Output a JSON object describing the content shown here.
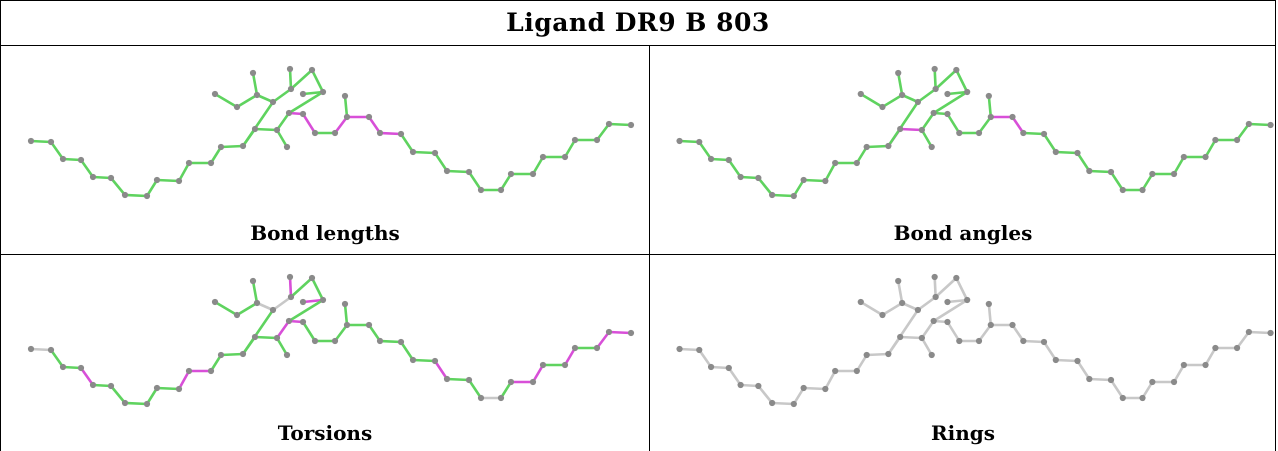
{
  "title": "Ligand DR9 B 803",
  "colors": {
    "ok": "#5fd35f",
    "outlier": "#d84fd8",
    "none": "#c8c8c8",
    "atom": "#8a8a8a",
    "border": "#000000"
  },
  "panels": [
    {
      "id": "bond-lengths",
      "label": "Bond lengths",
      "outliers": [
        [
          16,
          17
        ],
        [
          17,
          18
        ],
        [
          19,
          20
        ],
        [
          20,
          21
        ],
        [
          21,
          22
        ],
        [
          22,
          23
        ]
      ],
      "default": "ok"
    },
    {
      "id": "bond-angles",
      "label": "Bond angles",
      "outliers": [
        [
          13,
          14
        ],
        [
          14,
          15
        ],
        [
          20,
          21
        ],
        [
          21,
          22
        ]
      ],
      "default": "ok"
    },
    {
      "id": "torsions",
      "label": "Torsions",
      "outliers": [
        [
          3,
          4
        ],
        [
          9,
          10
        ],
        [
          10,
          11
        ],
        [
          15,
          16
        ],
        [
          16,
          17
        ],
        [
          25,
          26
        ],
        [
          30,
          31
        ],
        [
          31,
          32
        ],
        [
          33,
          34
        ],
        [
          35,
          36
        ],
        [
          36,
          37
        ],
        [
          43,
          44
        ],
        [
          44,
          45
        ],
        [
          46,
          47
        ]
      ],
      "neutral": [
        [
          0,
          1
        ],
        [
          39,
          40
        ],
        [
          41,
          42
        ],
        [
          42,
          43
        ],
        [
          37,
          38
        ],
        [
          28,
          29
        ]
      ],
      "default": "ok"
    },
    {
      "id": "rings",
      "label": "Rings",
      "outliers": [],
      "default": "none"
    }
  ]
}
